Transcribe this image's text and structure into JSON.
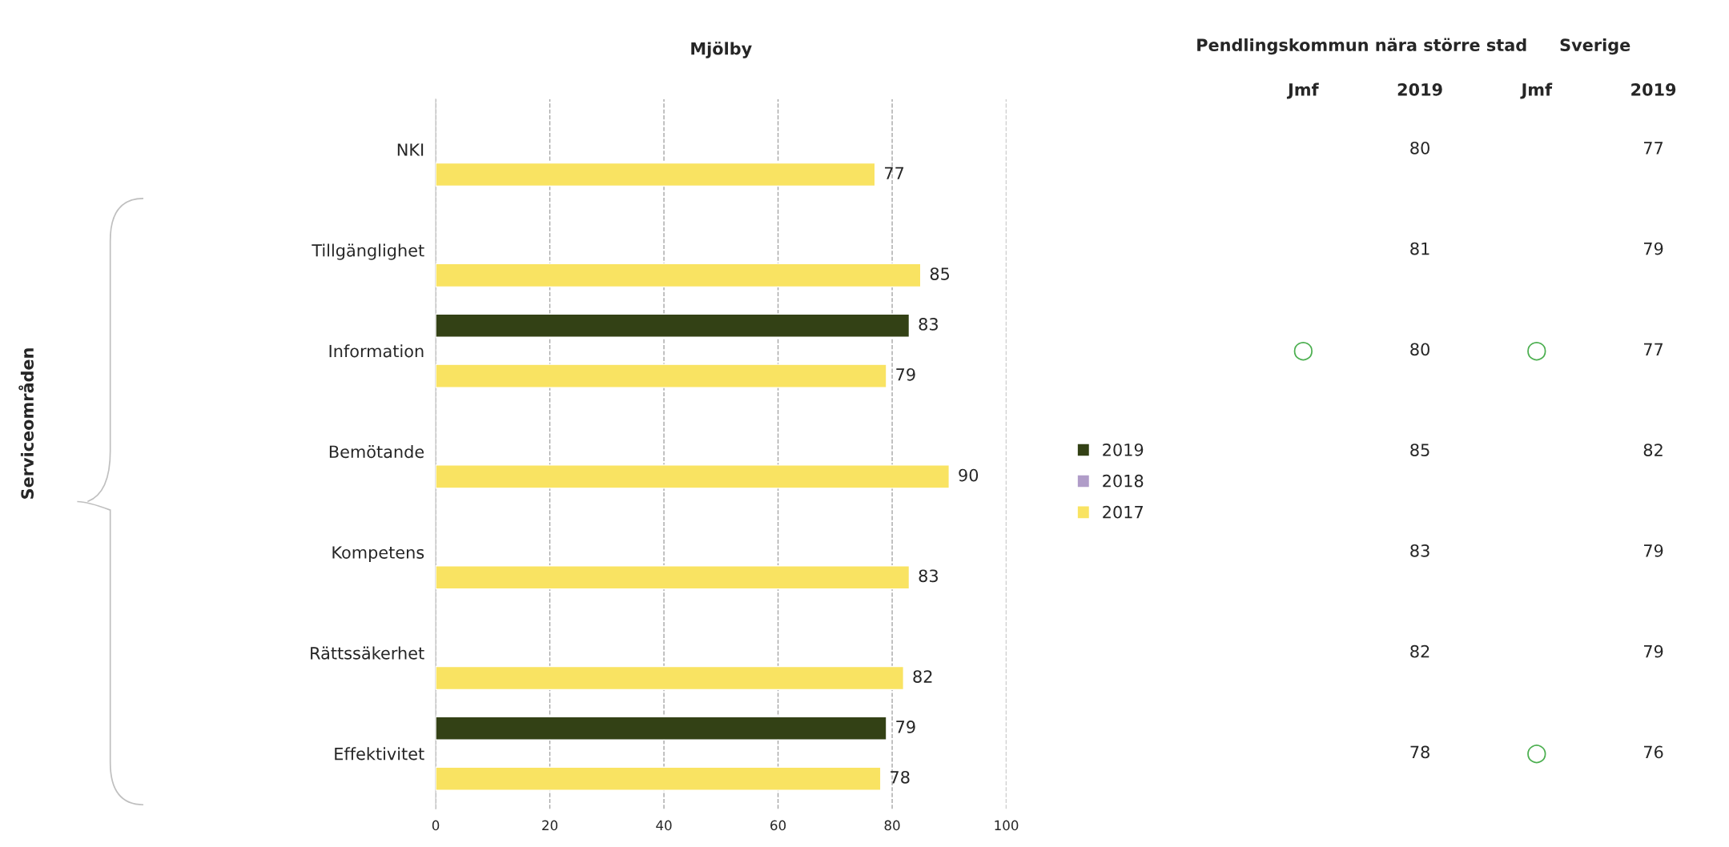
{
  "chart_data": [
    {
      "type": "bar",
      "orientation": "horizontal",
      "title": "Mjölby",
      "ylabel": "Serviceområden",
      "categories": [
        "NKI",
        "Tillgänglighet",
        "Information",
        "Bemötande",
        "Kompetens",
        "Rättssäkerhet",
        "Effektivitet"
      ],
      "series": [
        {
          "name": "2019",
          "color": "#334115",
          "values": [
            null,
            null,
            83,
            null,
            null,
            null,
            79
          ]
        },
        {
          "name": "2018",
          "color": "#b09cc8",
          "values": [
            null,
            null,
            null,
            null,
            null,
            null,
            null
          ]
        },
        {
          "name": "2017",
          "color": "#f9e362",
          "values": [
            77,
            85,
            79,
            90,
            83,
            82,
            78
          ]
        }
      ],
      "xlim": [
        0,
        100
      ],
      "xticks": [
        0,
        20,
        40,
        60,
        80,
        100
      ],
      "grid": "x",
      "line_style": "dashed",
      "legend": "right",
      "data_labels": true
    },
    {
      "type": "heatmap",
      "y_categories": [
        null,
        null,
        null,
        null,
        null,
        null,
        null
      ],
      "annotations": [
        "Pendlingskommun nära större stad",
        "Sverige"
      ],
      "categories": [
        "Jmf",
        "2019",
        "Jmf",
        "2019"
      ],
      "color": "#4caf50",
      "data_labels": true,
      "cells": [
        [
          null,
          80,
          null,
          77
        ],
        [
          null,
          81,
          null,
          79
        ],
        [
          null,
          80,
          null,
          77
        ],
        [
          null,
          85,
          null,
          82
        ],
        [
          null,
          83,
          null,
          79
        ],
        [
          null,
          82,
          null,
          79
        ],
        [
          null,
          78,
          null,
          76
        ]
      ],
      "cell_labels": [
        [
          null,
          "80",
          null,
          "77"
        ],
        [
          null,
          "81",
          null,
          "79"
        ],
        [
          "○",
          "80",
          "○",
          "77"
        ],
        [
          null,
          "85",
          null,
          "82"
        ],
        [
          null,
          "83",
          null,
          "79"
        ],
        [
          null,
          "82",
          null,
          "79"
        ],
        [
          null,
          "78",
          "○",
          "76"
        ]
      ]
    }
  ]
}
